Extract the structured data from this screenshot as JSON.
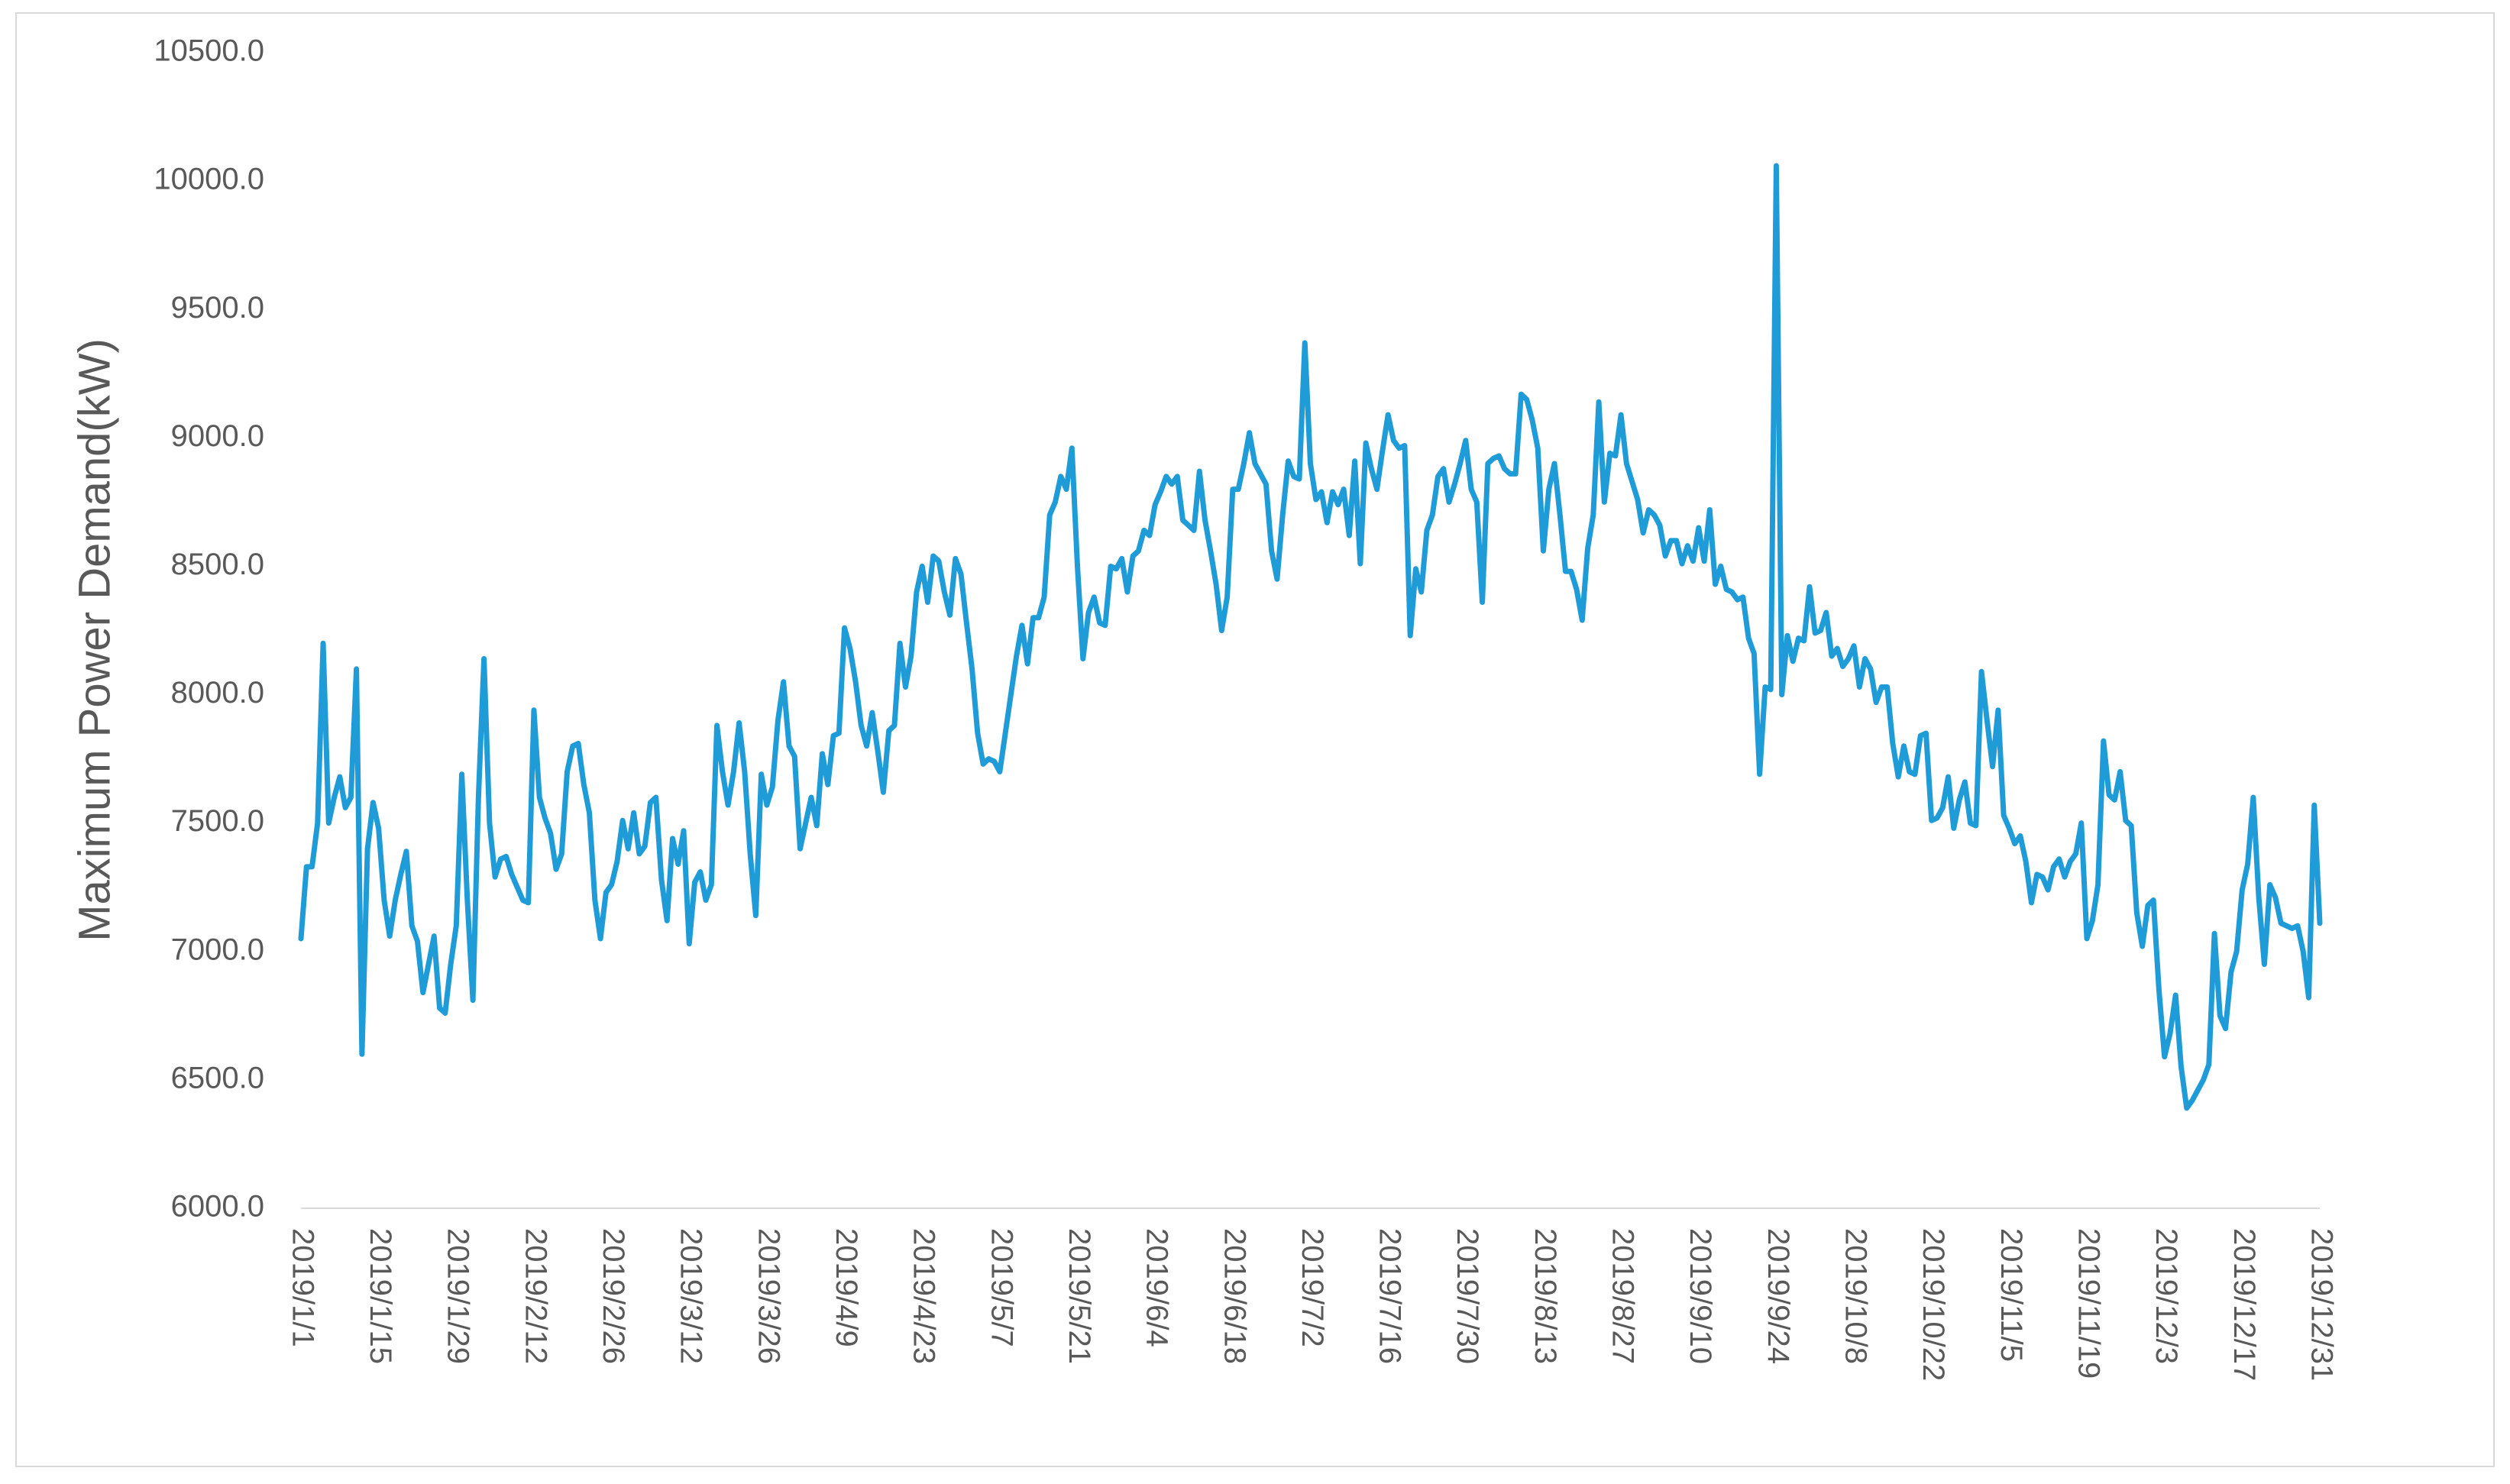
{
  "chart_data": {
    "type": "line",
    "y_label": "Maximum Power Demand(kW)",
    "ylim": [
      6000,
      10500
    ],
    "yticks": [
      {
        "value": 6000,
        "label": "6000.0"
      },
      {
        "value": 6500,
        "label": "6500.0"
      },
      {
        "value": 7000,
        "label": "7000.0"
      },
      {
        "value": 7500,
        "label": "7500.0"
      },
      {
        "value": 8000,
        "label": "8000.0"
      },
      {
        "value": 8500,
        "label": "8500.0"
      },
      {
        "value": 9000,
        "label": "9000.0"
      },
      {
        "value": 9500,
        "label": "9500.0"
      },
      {
        "value": 10000,
        "label": "10000.0"
      },
      {
        "value": 10500,
        "label": "10500.0"
      }
    ],
    "grid": false,
    "categories": [
      "2019/1/1",
      null,
      null,
      null,
      null,
      null,
      null,
      null,
      null,
      null,
      null,
      null,
      null,
      null,
      "2019/1/15",
      null,
      null,
      null,
      null,
      null,
      null,
      null,
      null,
      null,
      null,
      null,
      null,
      null,
      "2019/1/29",
      null,
      null,
      null,
      null,
      null,
      null,
      null,
      null,
      null,
      null,
      null,
      null,
      null,
      "2019/2/12",
      null,
      null,
      null,
      null,
      null,
      null,
      null,
      null,
      null,
      null,
      null,
      null,
      null,
      "2019/2/26",
      null,
      null,
      null,
      null,
      null,
      null,
      null,
      null,
      null,
      null,
      null,
      null,
      null,
      "2019/3/12",
      null,
      null,
      null,
      null,
      null,
      null,
      null,
      null,
      null,
      null,
      null,
      null,
      null,
      "2019/3/26",
      null,
      null,
      null,
      null,
      null,
      null,
      null,
      null,
      null,
      null,
      null,
      null,
      null,
      "2019/4/9",
      null,
      null,
      null,
      null,
      null,
      null,
      null,
      null,
      null,
      null,
      null,
      null,
      null,
      "2019/4/23",
      null,
      null,
      null,
      null,
      null,
      null,
      null,
      null,
      null,
      null,
      null,
      null,
      null,
      "2019/5/7",
      null,
      null,
      null,
      null,
      null,
      null,
      null,
      null,
      null,
      null,
      null,
      null,
      null,
      "2019/5/21",
      null,
      null,
      null,
      null,
      null,
      null,
      null,
      null,
      null,
      null,
      null,
      null,
      null,
      "2019/6/4",
      null,
      null,
      null,
      null,
      null,
      null,
      null,
      null,
      null,
      null,
      null,
      null,
      null,
      "2019/6/18",
      null,
      null,
      null,
      null,
      null,
      null,
      null,
      null,
      null,
      null,
      null,
      null,
      null,
      "2019/7/2",
      null,
      null,
      null,
      null,
      null,
      null,
      null,
      null,
      null,
      null,
      null,
      null,
      null,
      "2019/7/16",
      null,
      null,
      null,
      null,
      null,
      null,
      null,
      null,
      null,
      null,
      null,
      null,
      null,
      "2019/7/30",
      null,
      null,
      null,
      null,
      null,
      null,
      null,
      null,
      null,
      null,
      null,
      null,
      null,
      "2019/8/13",
      null,
      null,
      null,
      null,
      null,
      null,
      null,
      null,
      null,
      null,
      null,
      null,
      null,
      "2019/8/27",
      null,
      null,
      null,
      null,
      null,
      null,
      null,
      null,
      null,
      null,
      null,
      null,
      null,
      "2019/9/10",
      null,
      null,
      null,
      null,
      null,
      null,
      null,
      null,
      null,
      null,
      null,
      null,
      null,
      "2019/9/24",
      null,
      null,
      null,
      null,
      null,
      null,
      null,
      null,
      null,
      null,
      null,
      null,
      null,
      "2019/10/8",
      null,
      null,
      null,
      null,
      null,
      null,
      null,
      null,
      null,
      null,
      null,
      null,
      null,
      "2019/10/22",
      null,
      null,
      null,
      null,
      null,
      null,
      null,
      null,
      null,
      null,
      null,
      null,
      null,
      "2019/11/5",
      null,
      null,
      null,
      null,
      null,
      null,
      null,
      null,
      null,
      null,
      null,
      null,
      null,
      "2019/11/19",
      null,
      null,
      null,
      null,
      null,
      null,
      null,
      null,
      null,
      null,
      null,
      null,
      null,
      "2019/12/3",
      null,
      null,
      null,
      null,
      null,
      null,
      null,
      null,
      null,
      null,
      null,
      null,
      null,
      "2019/12/17",
      null,
      null,
      null,
      null,
      null,
      null,
      null,
      null,
      null,
      null,
      null,
      null,
      null,
      "2019/12/31"
    ],
    "series": [
      {
        "color": "#1f9bd7",
        "values": [
          7050,
          7330,
          7330,
          7500,
          8200,
          7500,
          7600,
          7680,
          7560,
          7600,
          8100,
          6600,
          7400,
          7580,
          7480,
          7200,
          7060,
          7200,
          7300,
          7390,
          7100,
          7040,
          6840,
          6950,
          7060,
          6780,
          6760,
          6950,
          7100,
          7690,
          7200,
          6810,
          7600,
          8140,
          7500,
          7290,
          7360,
          7370,
          7300,
          7250,
          7200,
          7190,
          7940,
          7600,
          7520,
          7460,
          7320,
          7380,
          7700,
          7800,
          7810,
          7650,
          7540,
          7200,
          7050,
          7230,
          7260,
          7350,
          7510,
          7400,
          7540,
          7380,
          7410,
          7580,
          7600,
          7280,
          7120,
          7440,
          7340,
          7470,
          7030,
          7270,
          7310,
          7200,
          7260,
          7880,
          7700,
          7570,
          7700,
          7890,
          7700,
          7380,
          7140,
          7690,
          7570,
          7640,
          7900,
          8050,
          7800,
          7760,
          7400,
          7500,
          7600,
          7490,
          7770,
          7650,
          7840,
          7850,
          8260,
          8180,
          8050,
          7880,
          7800,
          7930,
          7780,
          7620,
          7860,
          7880,
          8200,
          8030,
          8150,
          8400,
          8500,
          8360,
          8540,
          8520,
          8400,
          8310,
          8530,
          8470,
          8280,
          8100,
          7850,
          7730,
          7750,
          7740,
          7700,
          7850,
          8000,
          8150,
          8270,
          8120,
          8300,
          8300,
          8380,
          8700,
          8750,
          8850,
          8800,
          8960,
          8500,
          8140,
          8320,
          8380,
          8280,
          8270,
          8500,
          8490,
          8530,
          8400,
          8540,
          8560,
          8640,
          8620,
          8740,
          8790,
          8850,
          8820,
          8850,
          8680,
          8660,
          8640,
          8870,
          8680,
          8560,
          8430,
          8250,
          8380,
          8800,
          8800,
          8900,
          9020,
          8900,
          8860,
          8820,
          8560,
          8450,
          8700,
          8910,
          8850,
          8840,
          9370,
          8900,
          8760,
          8790,
          8670,
          8790,
          8740,
          8800,
          8620,
          8910,
          8510,
          8980,
          8880,
          8800,
          8950,
          9090,
          8990,
          8960,
          8970,
          8230,
          8490,
          8400,
          8640,
          8700,
          8850,
          8880,
          8750,
          8820,
          8900,
          8990,
          8800,
          8750,
          8360,
          8900,
          8920,
          8930,
          8880,
          8860,
          8860,
          9170,
          9150,
          9070,
          8960,
          8560,
          8800,
          8900,
          8700,
          8480,
          8480,
          8410,
          8290,
          8570,
          8700,
          9140,
          8750,
          8940,
          8930,
          9090,
          8900,
          8830,
          8760,
          8630,
          8720,
          8700,
          8660,
          8540,
          8600,
          8600,
          8510,
          8580,
          8520,
          8650,
          8520,
          8720,
          8430,
          8500,
          8410,
          8400,
          8370,
          8380,
          8220,
          8160,
          7690,
          8030,
          8020,
          10060,
          8000,
          8230,
          8130,
          8220,
          8210,
          8420,
          8240,
          8250,
          8320,
          8150,
          8180,
          8110,
          8140,
          8190,
          8030,
          8140,
          8100,
          7970,
          8030,
          8030,
          7810,
          7680,
          7800,
          7700,
          7690,
          7840,
          7850,
          7510,
          7520,
          7560,
          7680,
          7480,
          7590,
          7660,
          7500,
          7490,
          8090,
          7900,
          7720,
          7940,
          7530,
          7480,
          7420,
          7450,
          7350,
          7190,
          7300,
          7290,
          7240,
          7330,
          7360,
          7290,
          7350,
          7380,
          7500,
          7050,
          7120,
          7260,
          7820,
          7610,
          7590,
          7700,
          7510,
          7490,
          7150,
          7020,
          7180,
          7200,
          6850,
          6590,
          6680,
          6830,
          6550,
          6390,
          6420,
          6460,
          6500,
          6560,
          7070,
          6750,
          6700,
          6920,
          7000,
          7240,
          7340,
          7600,
          7210,
          6950,
          7260,
          7210,
          7110,
          7100,
          7090,
          7100,
          7000,
          6820,
          7570,
          7110
        ]
      }
    ]
  }
}
